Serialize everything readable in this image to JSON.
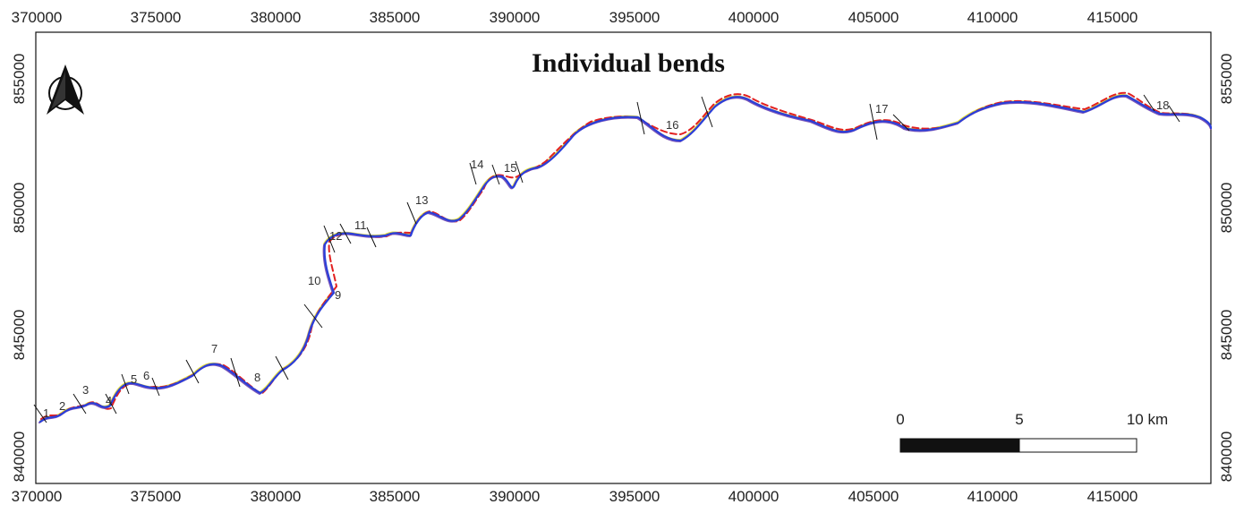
{
  "map": {
    "title": "Individual bends",
    "x_ticks": [
      "370000",
      "375000",
      "380000",
      "385000",
      "390000",
      "395000",
      "400000",
      "405000",
      "410000",
      "415000"
    ],
    "y_ticks": [
      "855000",
      "850000",
      "845000",
      "840000"
    ],
    "bend_labels": [
      "1",
      "2",
      "3",
      "4",
      "5",
      "6",
      "7",
      "8",
      "9",
      "10",
      "11",
      "12",
      "13",
      "14",
      "15",
      "16",
      "17",
      "18"
    ],
    "scale_bar": {
      "labels": [
        "0",
        "5",
        "10 km"
      ]
    },
    "north_arrow": "north-arrow-icon",
    "line_colors": {
      "blue": "#2b3fd9",
      "purple": "#7a55b8",
      "red_dashed": "#e22020",
      "yellow": "#e6e040",
      "teal": "#3a8a8a",
      "green": "#2f6e3a"
    }
  }
}
